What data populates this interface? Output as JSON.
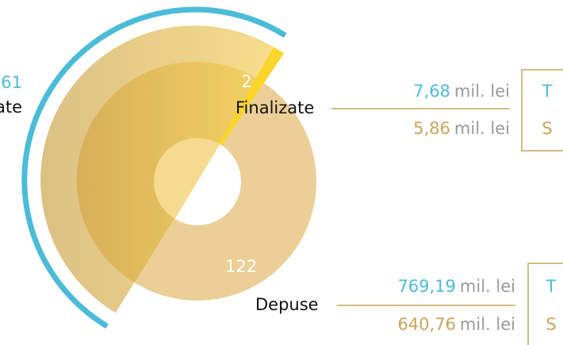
{
  "left": {
    "value": "61",
    "label": "ate"
  },
  "finalizate": {
    "count": "2",
    "label": "Finalizate",
    "rows": [
      {
        "amount": "7,68",
        "unit": "mil. lei",
        "code": "T"
      },
      {
        "amount": "5,86",
        "unit": "mil. lei",
        "code": "S"
      }
    ]
  },
  "depuse": {
    "count": "122",
    "label": "Depuse",
    "rows": [
      {
        "amount": "769,19",
        "unit": "mil. lei",
        "code": "T"
      },
      {
        "amount": "640,76",
        "unit": "mil. lei",
        "code": "S"
      }
    ]
  }
}
